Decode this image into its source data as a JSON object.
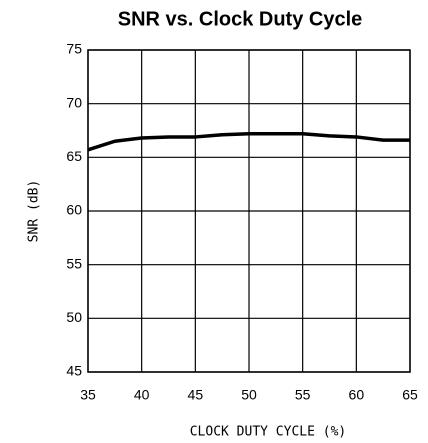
{
  "chart_data": {
    "type": "line",
    "title": "SNR vs. Clock Duty Cycle",
    "x_label": "CLOCK DUTY CYCLE (%)",
    "y_label": "SNR (dB)",
    "x": [
      35,
      37.5,
      40,
      42.5,
      45,
      47.5,
      50,
      52.5,
      55,
      57.5,
      60,
      62.5,
      65
    ],
    "series": [
      {
        "name": "SNR",
        "color": "#000000",
        "values": [
          65.7,
          66.5,
          66.8,
          66.9,
          66.9,
          67.1,
          67.2,
          67.2,
          67.2,
          67.0,
          66.9,
          66.6,
          66.6
        ]
      }
    ],
    "xlim": [
      35,
      65
    ],
    "xticks": [
      35,
      40,
      45,
      50,
      55,
      60,
      65
    ],
    "ylim": [
      45,
      75
    ],
    "yticks": [
      45,
      50,
      55,
      60,
      65,
      70,
      75
    ],
    "grid": true
  }
}
